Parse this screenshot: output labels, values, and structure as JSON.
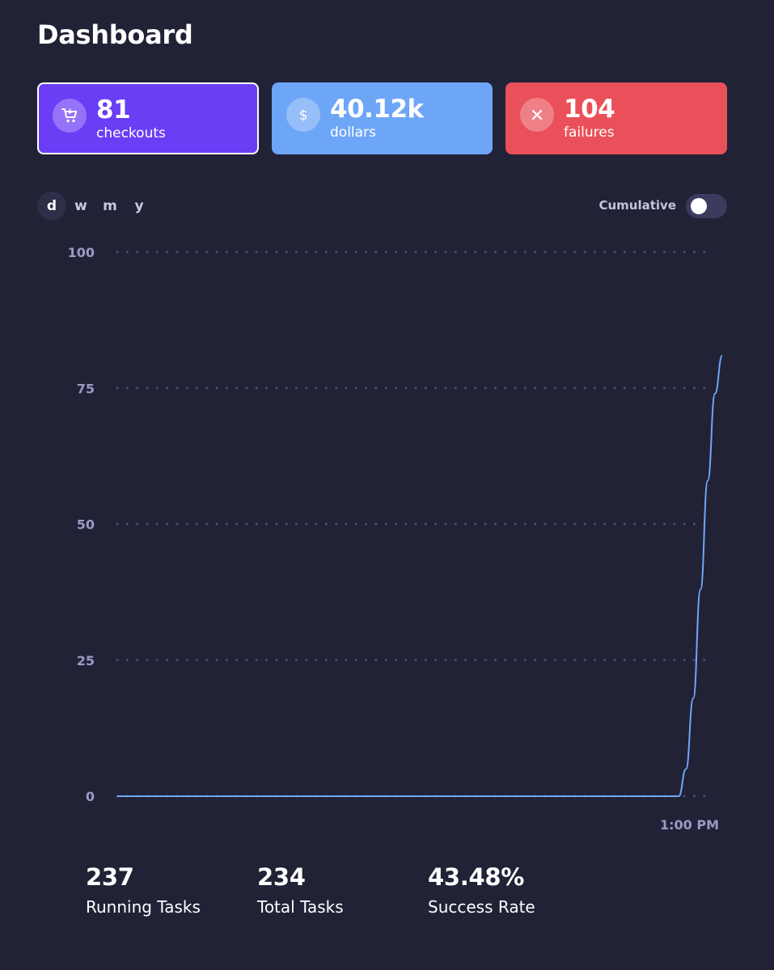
{
  "page": {
    "title": "Dashboard"
  },
  "cards": {
    "checkouts": {
      "value": "81",
      "label": "checkouts",
      "icon": "cart-icon",
      "color": "#6a3ef5"
    },
    "dollars": {
      "value": "40.12k",
      "label": "dollars",
      "icon": "dollar-icon",
      "color": "#6ea6f7"
    },
    "failures": {
      "value": "104",
      "label": "failures",
      "icon": "close-icon",
      "color": "#ea5059"
    }
  },
  "range_tabs": [
    {
      "label": "d",
      "active": true
    },
    {
      "label": "w",
      "active": false
    },
    {
      "label": "m",
      "active": false
    },
    {
      "label": "y",
      "active": false
    }
  ],
  "cumulative": {
    "label": "Cumulative",
    "enabled": false
  },
  "chart_data": {
    "type": "line",
    "title": "",
    "xlabel": "",
    "ylabel": "",
    "ylim": [
      0,
      100
    ],
    "y_ticks": [
      "100",
      "75",
      "50",
      "25",
      "0"
    ],
    "x_tick_labels": [
      "1:00 PM"
    ],
    "grid": true,
    "line_color": "#6ea6f7",
    "series": [
      {
        "x": [
          0,
          93.0,
          94.2,
          95.4,
          96.6,
          97.8,
          99.0,
          100.2
        ],
        "y": [
          0,
          0,
          5,
          18,
          38,
          58,
          74,
          81
        ]
      }
    ]
  },
  "stats": [
    {
      "value": "237",
      "label": "Running Tasks"
    },
    {
      "value": "234",
      "label": "Total Tasks"
    },
    {
      "value": "43.48%",
      "label": "Success Rate"
    }
  ]
}
